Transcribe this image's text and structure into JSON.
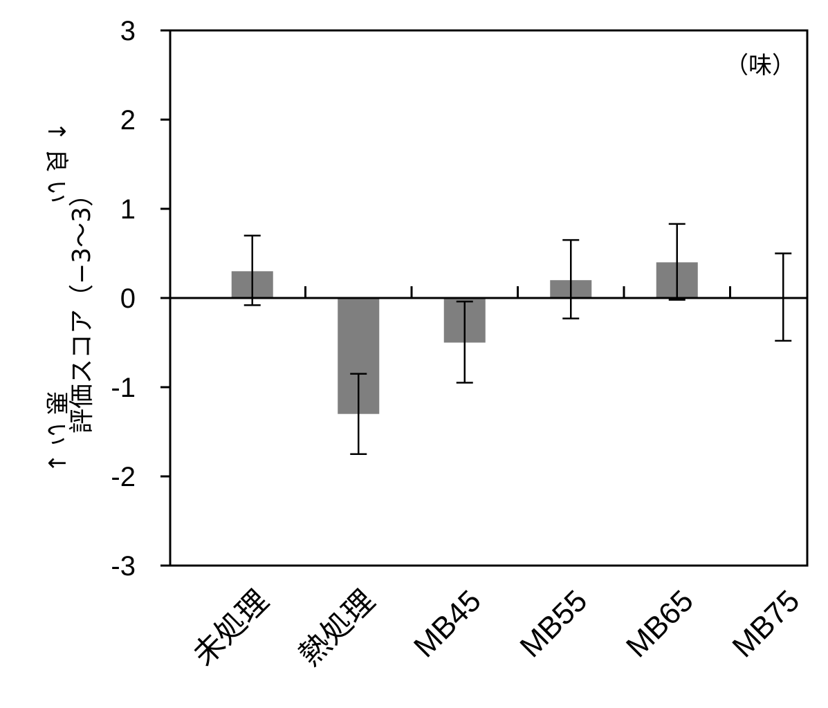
{
  "chart_data": {
    "type": "bar",
    "categories": [
      "未処理",
      "熱処理",
      "MB45",
      "MB55",
      "MB65",
      "MB75"
    ],
    "values": [
      0.3,
      -1.3,
      -0.5,
      0.2,
      0.4,
      0.0
    ],
    "error_low": [
      -0.08,
      -1.75,
      -0.95,
      -0.23,
      -0.02,
      -0.48
    ],
    "error_high": [
      0.7,
      -0.85,
      -0.04,
      0.65,
      0.83,
      0.5
    ],
    "ylabel": "評価スコア（−3〜3）",
    "ylim": [
      -3,
      3
    ],
    "yticks": [
      "3",
      "2",
      "1",
      "0",
      "-1",
      "-2",
      "-3"
    ],
    "good_label": "↑ 良 い",
    "bad_label": "悪 い ↓",
    "annotation": "（味）",
    "grid": false,
    "bar_color": "#7f7f7f"
  }
}
